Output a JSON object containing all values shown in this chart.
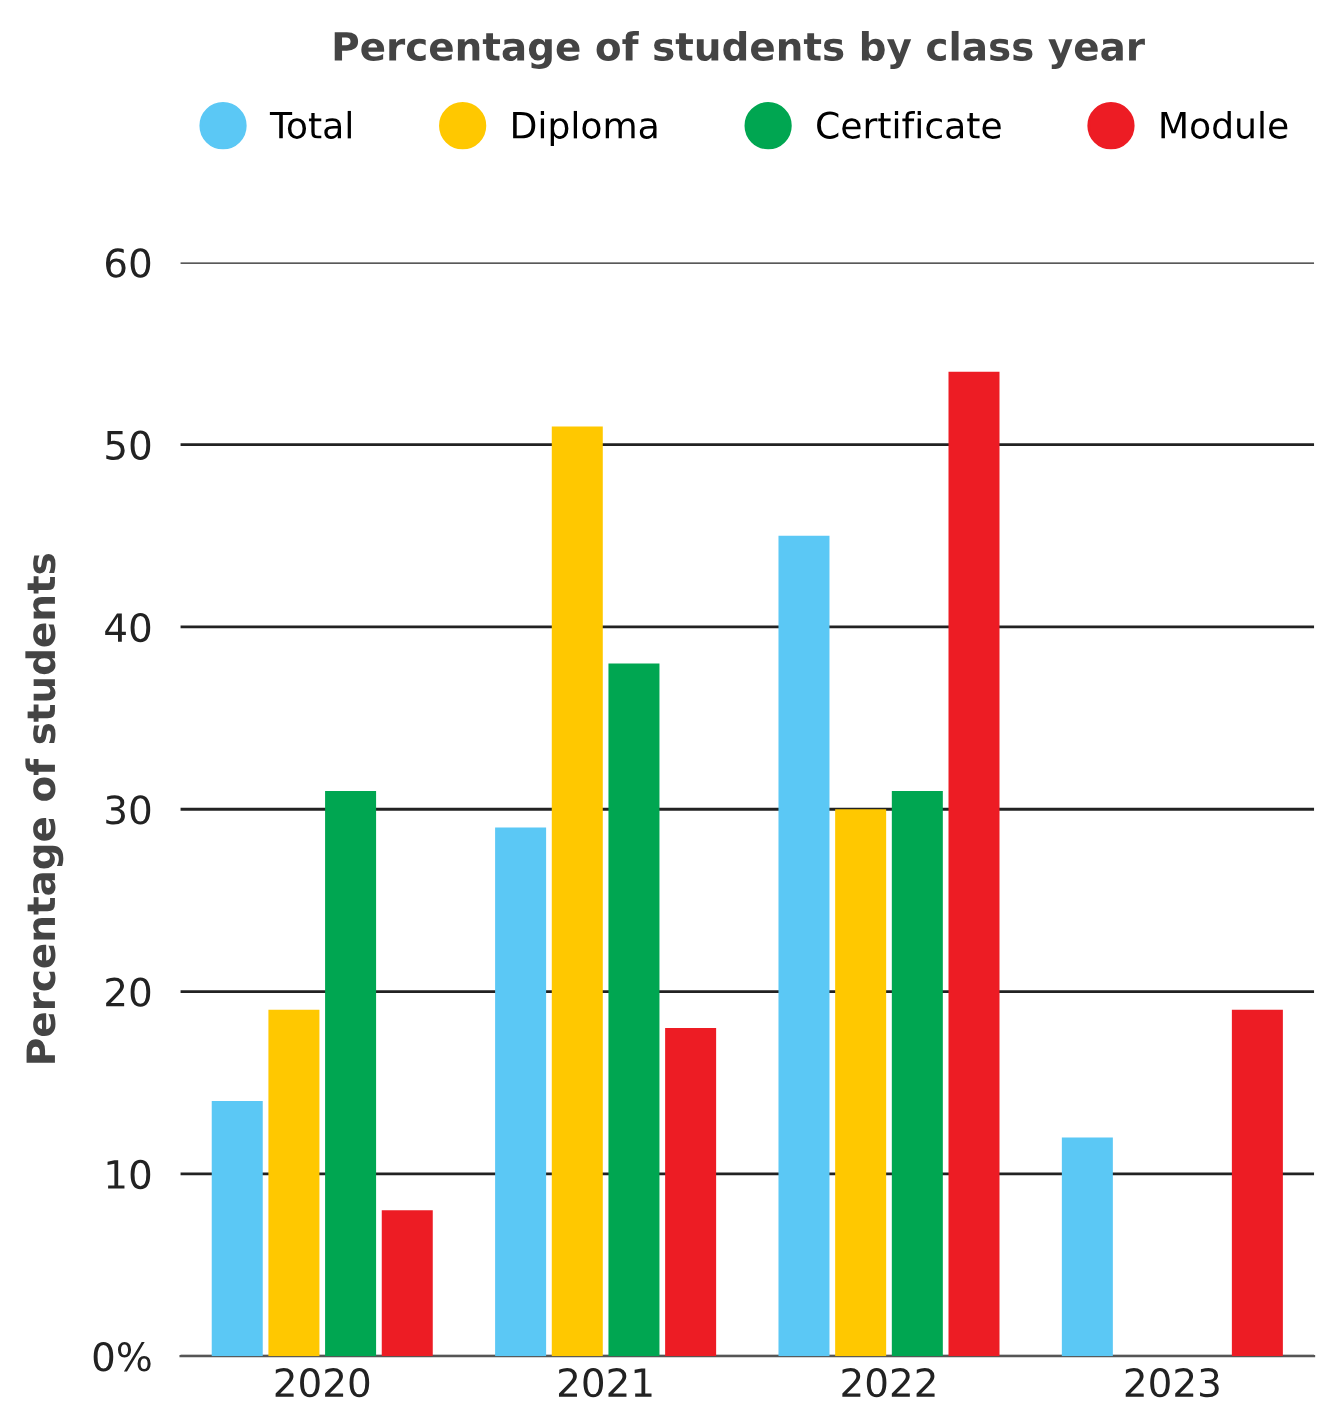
{
  "chart_data": {
    "type": "bar",
    "title": "Percentage of students by class year",
    "ylabel": "Percentage of students",
    "categories": [
      "2020",
      "2021",
      "2022",
      "2023"
    ],
    "series": [
      {
        "name": "Total",
        "color": "#5bc8f5",
        "values": [
          14,
          29,
          45,
          12
        ]
      },
      {
        "name": "Diploma",
        "color": "#ffc800",
        "values": [
          19,
          51,
          30,
          0
        ]
      },
      {
        "name": "Certificate",
        "color": "#00a651",
        "values": [
          31,
          38,
          31,
          0
        ]
      },
      {
        "name": "Module",
        "color": "#ed1c24",
        "values": [
          8,
          18,
          54,
          19
        ]
      }
    ],
    "ylim": [
      0,
      60
    ],
    "yticks": [
      {
        "value": 0,
        "label": "0%"
      },
      10,
      20,
      30,
      40,
      50,
      60
    ],
    "grid": "y",
    "legend": "top"
  }
}
